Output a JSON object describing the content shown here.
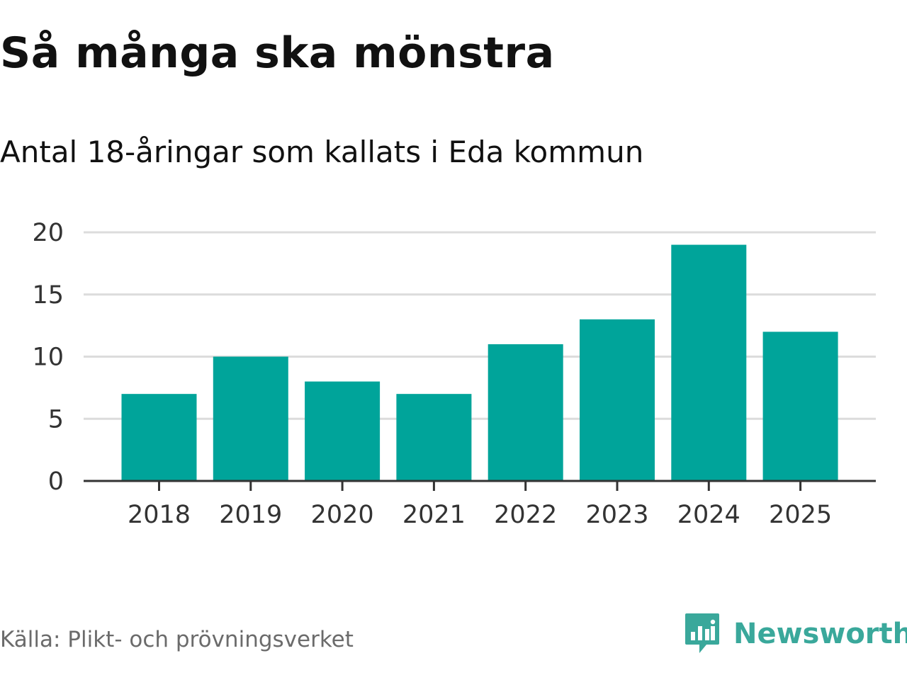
{
  "title": "Så många ska mönstra",
  "subtitle": "Antal 18-åringar som kallats i Eda kommun",
  "source": "Källa: Plikt- och prövningsverket",
  "brand": {
    "name": "Newsworthy",
    "icon": "newsworthy-logo-icon",
    "color": "#3aa89b"
  },
  "colors": {
    "bar": "#00a49a",
    "grid": "#dcdcdc",
    "axis": "#333333"
  },
  "chart_data": {
    "type": "bar",
    "categories": [
      "2018",
      "2019",
      "2020",
      "2021",
      "2022",
      "2023",
      "2024",
      "2025"
    ],
    "values": [
      7,
      10,
      8,
      7,
      11,
      13,
      19,
      12
    ],
    "yticks": [
      0,
      5,
      10,
      15,
      20
    ],
    "ylim": [
      0,
      20
    ],
    "title": "Så många ska mönstra",
    "xlabel": "",
    "ylabel": "",
    "grid": true,
    "legend": "none"
  }
}
